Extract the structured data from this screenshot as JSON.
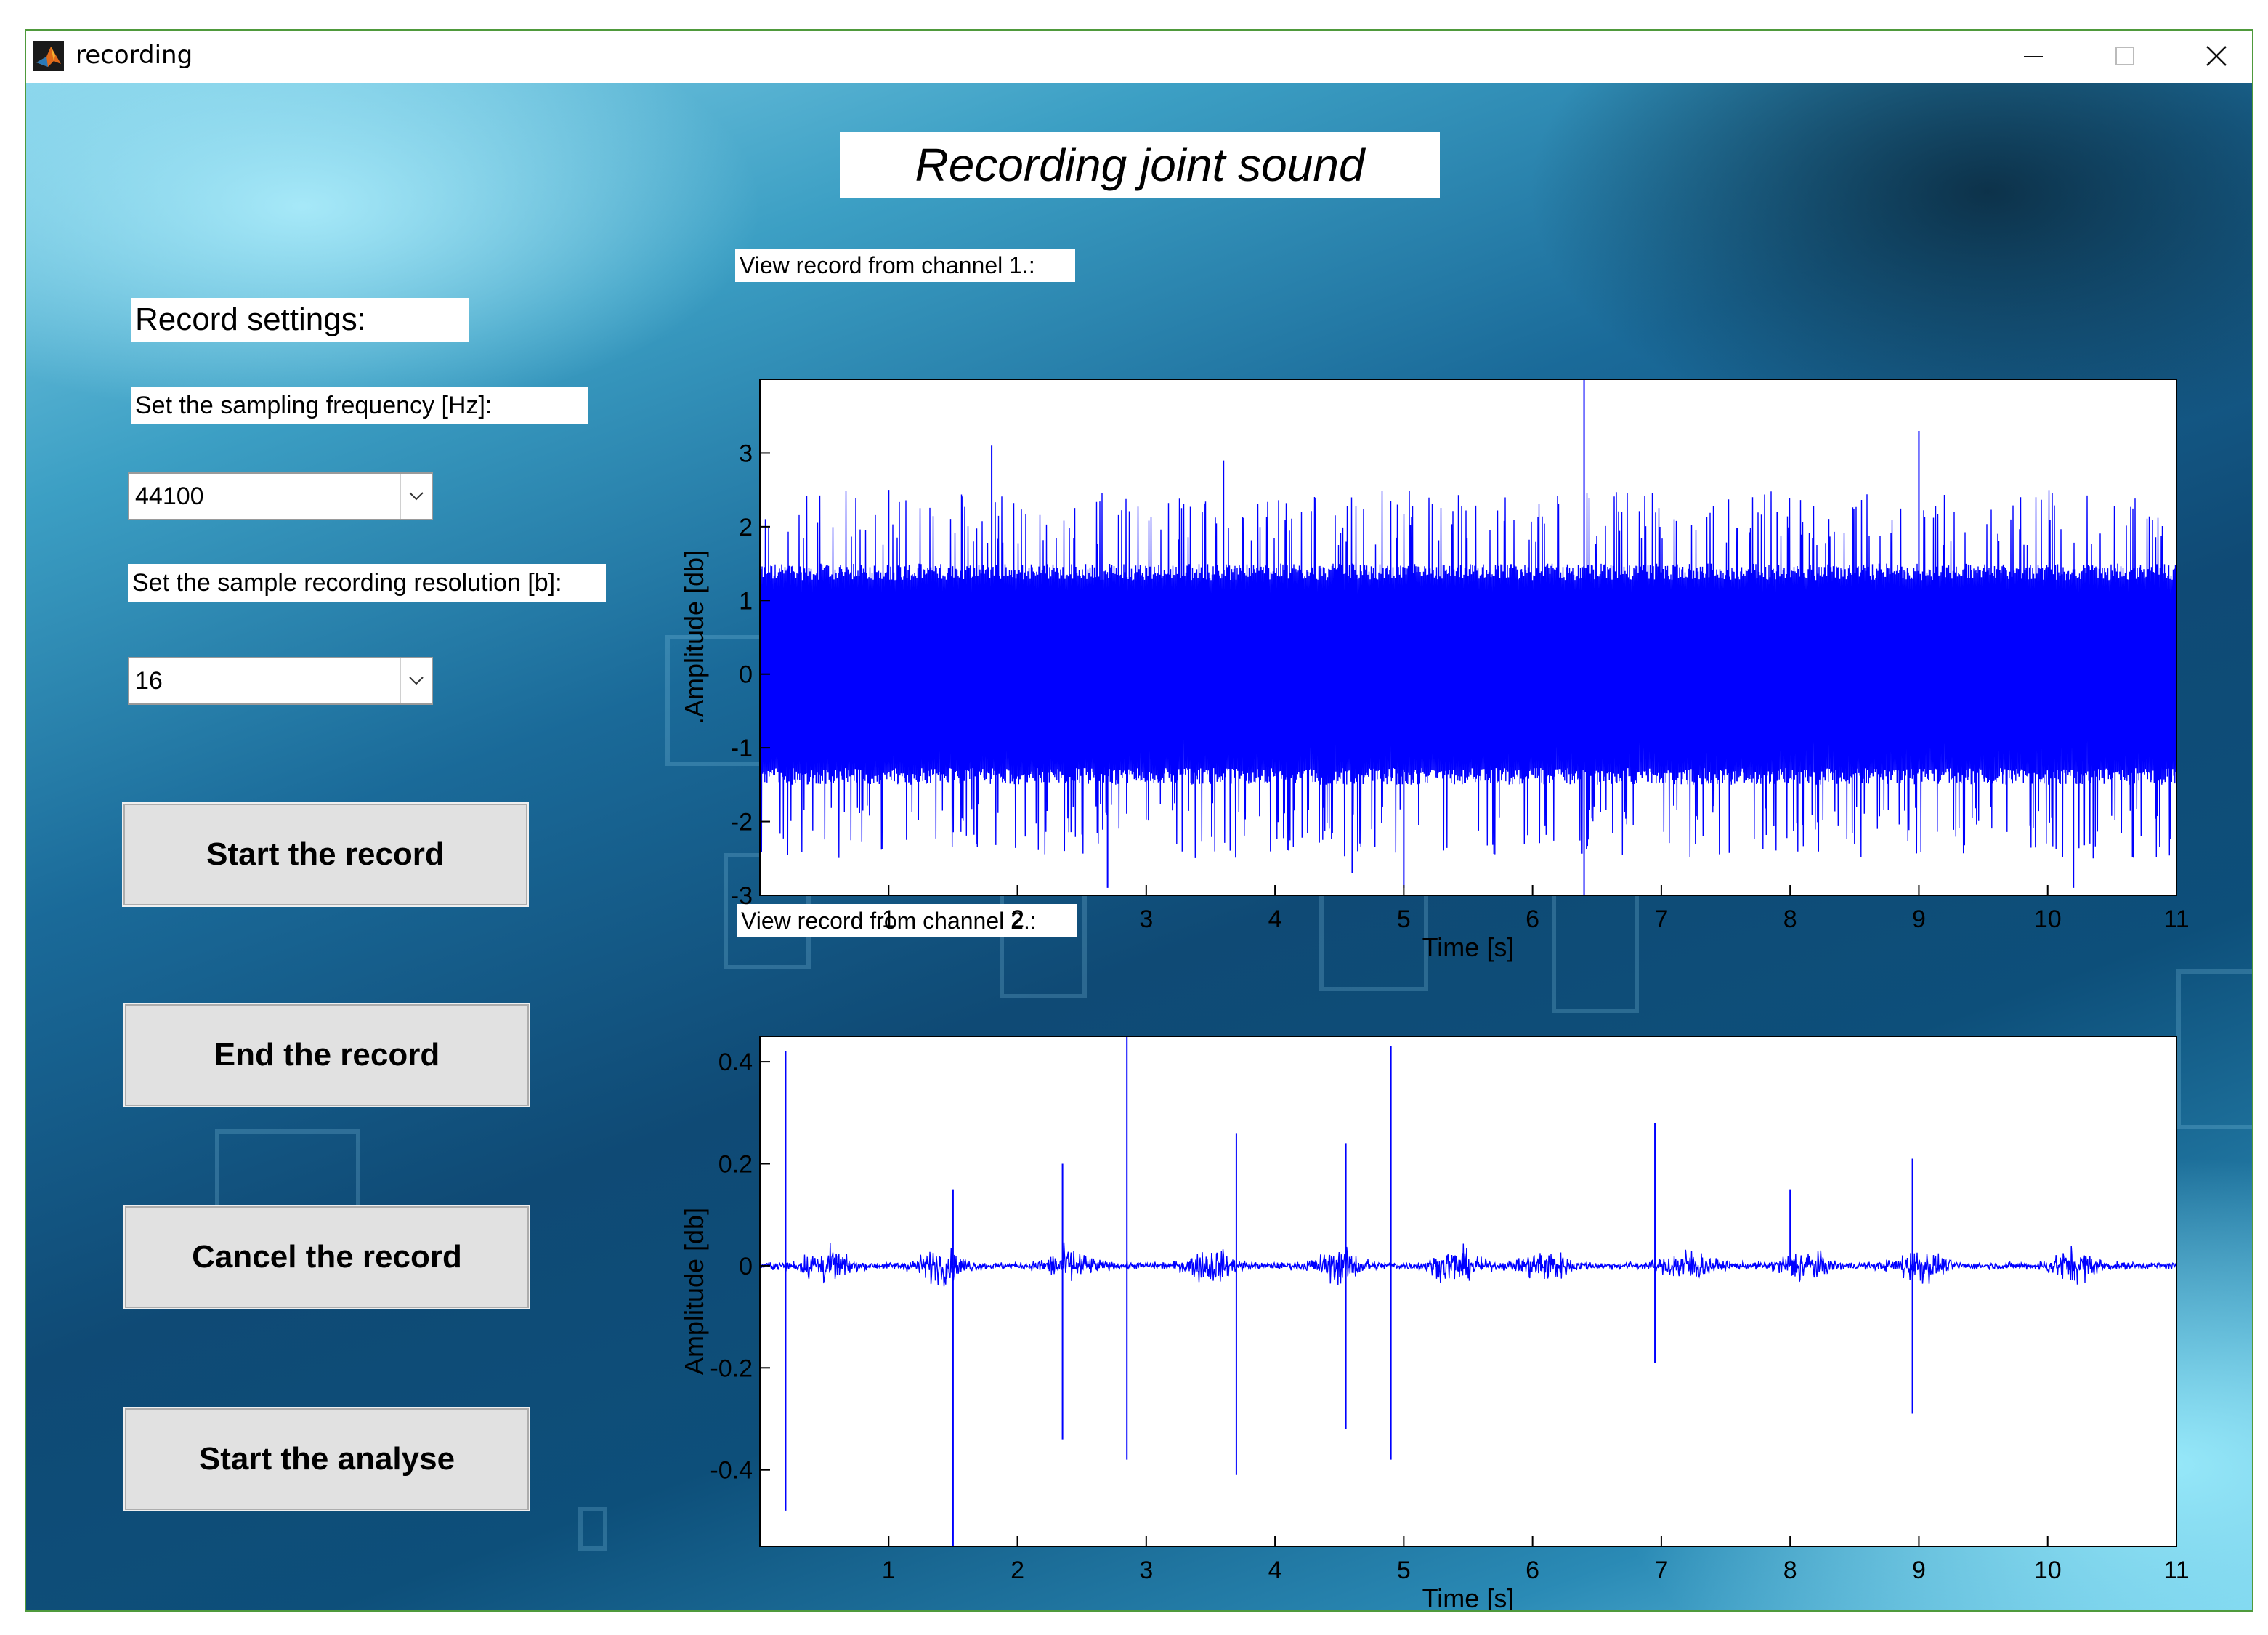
{
  "window": {
    "title": "recording",
    "controls": [
      "minimize",
      "maximize",
      "close"
    ]
  },
  "heading": "Recording joint sound",
  "settings": {
    "title": "Record settings:",
    "sampling_label": "Set the sampling frequency [Hz]:",
    "sampling_value": "44100",
    "resolution_label": "Set the sample recording resolution [b]:",
    "resolution_value": "16"
  },
  "buttons": {
    "start": "Start the record",
    "end": "End the record",
    "cancel": "Cancel the record",
    "analyse": "Start the analyse"
  },
  "plots": {
    "ch1_title": "View record from channel 1.:",
    "ch2_title": "View record from channel 2.:"
  },
  "colors": {
    "signal": "#0000ff",
    "button_face": "#e1e1e1",
    "window_border": "#4f9a3c"
  },
  "chart_data": [
    {
      "type": "line",
      "title": "",
      "xlabel": "Time [s]",
      "ylabel": ".Amplitude [db]",
      "xlim": [
        0,
        11
      ],
      "ylim": [
        -3,
        4
      ],
      "xticks": [
        "1",
        "2",
        "3",
        "4",
        "5",
        "6",
        "7",
        "8",
        "9",
        "10",
        "11"
      ],
      "yticks": [
        "3",
        "2",
        "1",
        "0",
        "-1",
        "-2",
        "-3"
      ],
      "grid": false,
      "series": [
        {
          "color": "#0000ff",
          "description": "dense noise signal filling approx -1.5 to 1.5, bursts to about ±2.5",
          "envelope": {
            "core": [
              -1.5,
              1.5
            ],
            "typical_peaks": [
              -2.5,
              2.5
            ]
          },
          "spikes": [
            {
              "x": 1.0,
              "y": 2.5
            },
            {
              "x": 1.8,
              "y": 3.1
            },
            {
              "x": 2.7,
              "y": -2.9
            },
            {
              "x": 3.6,
              "y": 2.9
            },
            {
              "x": 4.6,
              "y": -2.7
            },
            {
              "x": 5.0,
              "y": -2.9
            },
            {
              "x": 6.4,
              "y": 4.0
            },
            {
              "x": 6.4,
              "y": -3.0
            },
            {
              "x": 7.9,
              "y": 2.2
            },
            {
              "x": 9.0,
              "y": 3.3
            },
            {
              "x": 10.2,
              "y": -2.9
            }
          ]
        }
      ]
    },
    {
      "type": "line",
      "title": "",
      "xlabel": "Time [s]",
      "ylabel": "Amplitude [db]",
      "xlim": [
        0,
        11
      ],
      "ylim": [
        -0.55,
        0.45
      ],
      "xticks": [
        "1",
        "2",
        "3",
        "4",
        "5",
        "6",
        "7",
        "8",
        "9",
        "10",
        "11"
      ],
      "yticks": [
        "0.4",
        "0.2",
        "0",
        "-0.2",
        "-0.4"
      ],
      "grid": false,
      "series": [
        {
          "color": "#0000ff",
          "description": "mostly near zero with periodic bursts (joint sound) and sharp spikes",
          "bursts": [
            0.5,
            1.4,
            2.4,
            3.5,
            4.5,
            5.4,
            6.1,
            7.2,
            8.1,
            9.0,
            10.2
          ],
          "spikes": [
            {
              "x": 0.2,
              "y": 0.42
            },
            {
              "x": 0.2,
              "y": -0.48
            },
            {
              "x": 1.5,
              "y": 0.15
            },
            {
              "x": 1.5,
              "y": -0.58
            },
            {
              "x": 2.35,
              "y": 0.2
            },
            {
              "x": 2.35,
              "y": -0.34
            },
            {
              "x": 2.85,
              "y": 0.45
            },
            {
              "x": 2.85,
              "y": -0.38
            },
            {
              "x": 3.7,
              "y": 0.26
            },
            {
              "x": 3.7,
              "y": -0.41
            },
            {
              "x": 4.55,
              "y": 0.24
            },
            {
              "x": 4.55,
              "y": -0.32
            },
            {
              "x": 4.9,
              "y": 0.43
            },
            {
              "x": 4.9,
              "y": -0.38
            },
            {
              "x": 6.95,
              "y": 0.28
            },
            {
              "x": 6.95,
              "y": -0.19
            },
            {
              "x": 8.0,
              "y": 0.15
            },
            {
              "x": 8.95,
              "y": 0.21
            },
            {
              "x": 8.95,
              "y": -0.29
            }
          ]
        }
      ]
    }
  ]
}
